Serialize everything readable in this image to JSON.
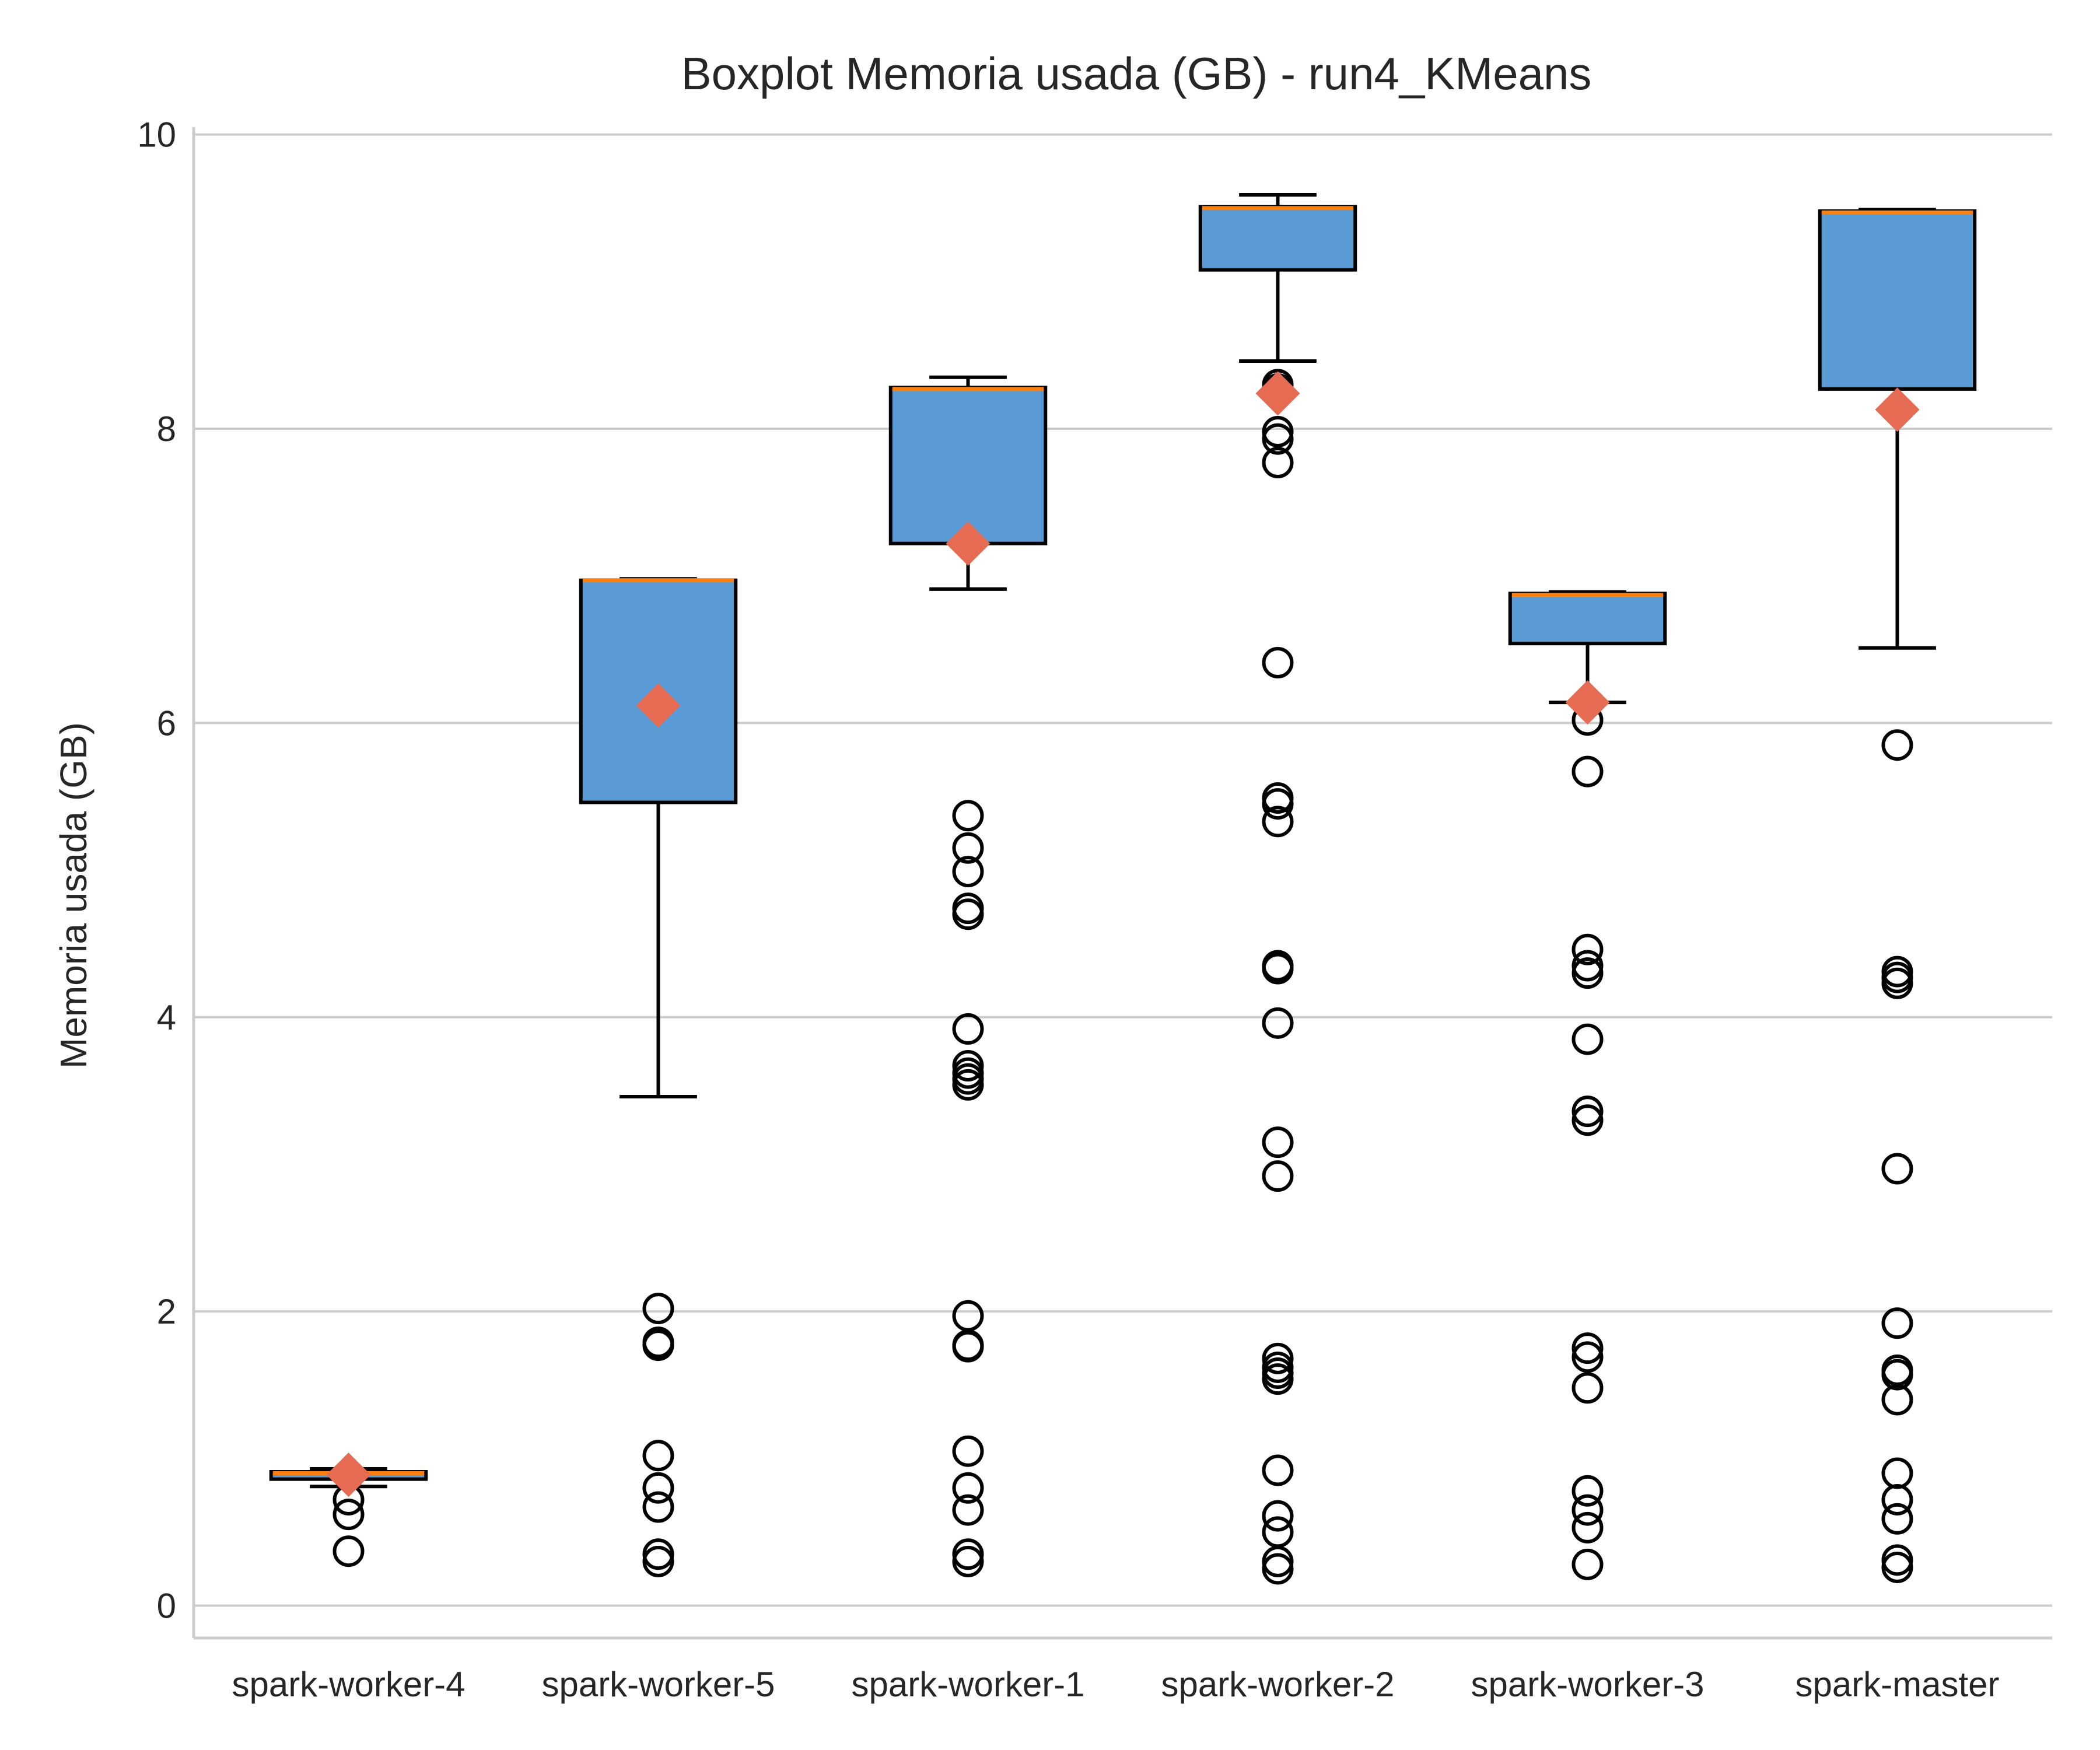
{
  "chart_data": {
    "type": "boxplot",
    "title": "Boxplot Memoria usada (GB) - run4_KMeans",
    "xlabel": "",
    "ylabel": "Memoria usada (GB)",
    "ylim": [
      -0.22,
      10.05
    ],
    "yticks": [
      0,
      2,
      4,
      6,
      8,
      10
    ],
    "grid": "horizontal",
    "colors": {
      "box_fill": "#5b9bd5",
      "box_edge": "#000000",
      "median": "#ff7f0e",
      "mean_marker": "#e56b52",
      "grid": "#cccccc",
      "axes": "#cccccc"
    },
    "categories": [
      "spark-worker-4",
      "spark-worker-5",
      "spark-worker-1",
      "spark-worker-2",
      "spark-worker-3",
      "spark-master"
    ],
    "boxes": [
      {
        "name": "spark-worker-4",
        "whislo": 0.81,
        "q1": 0.86,
        "median": 0.9,
        "q3": 0.91,
        "whishi": 0.93,
        "mean": 0.89,
        "fliers": [
          0.37,
          0.62,
          0.72
        ]
      },
      {
        "name": "spark-worker-5",
        "whislo": 3.46,
        "q1": 5.46,
        "median": 6.97,
        "q3": 6.97,
        "whishi": 6.98,
        "mean": 6.12,
        "fliers": [
          0.3,
          0.35,
          0.67,
          0.8,
          1.02,
          1.77,
          1.79,
          2.02
        ]
      },
      {
        "name": "spark-worker-1",
        "whislo": 6.91,
        "q1": 7.22,
        "median": 8.27,
        "q3": 8.28,
        "whishi": 8.35,
        "mean": 7.22,
        "fliers": [
          0.3,
          0.35,
          0.65,
          0.8,
          1.05,
          1.76,
          1.77,
          1.97,
          3.54,
          3.58,
          3.62,
          3.67,
          3.92,
          4.7,
          4.74,
          4.99,
          5.15,
          5.37
        ]
      },
      {
        "name": "spark-worker-2",
        "whislo": 8.46,
        "q1": 9.08,
        "median": 9.5,
        "q3": 9.51,
        "whishi": 9.59,
        "mean": 8.24,
        "fliers": [
          0.25,
          0.3,
          0.5,
          0.61,
          0.92,
          1.54,
          1.58,
          1.62,
          1.68,
          2.92,
          3.15,
          3.96,
          4.33,
          4.35,
          5.33,
          5.45,
          5.49,
          6.41,
          7.77,
          7.93,
          7.98,
          8.27,
          8.3
        ]
      },
      {
        "name": "spark-worker-3",
        "whislo": 6.14,
        "q1": 6.54,
        "median": 6.87,
        "q3": 6.88,
        "whishi": 6.89,
        "mean": 6.14,
        "fliers": [
          0.28,
          0.53,
          0.65,
          0.78,
          1.48,
          1.69,
          1.75,
          3.3,
          3.36,
          3.85,
          4.3,
          4.35,
          4.46,
          5.67,
          6.02
        ]
      },
      {
        "name": "spark-master",
        "whislo": 6.51,
        "q1": 8.27,
        "median": 9.47,
        "q3": 9.48,
        "whishi": 9.49,
        "mean": 8.13,
        "fliers": [
          0.26,
          0.31,
          0.59,
          0.72,
          0.9,
          1.4,
          1.57,
          1.6,
          1.92,
          2.97,
          4.23,
          4.27,
          4.31,
          5.85
        ]
      }
    ]
  }
}
